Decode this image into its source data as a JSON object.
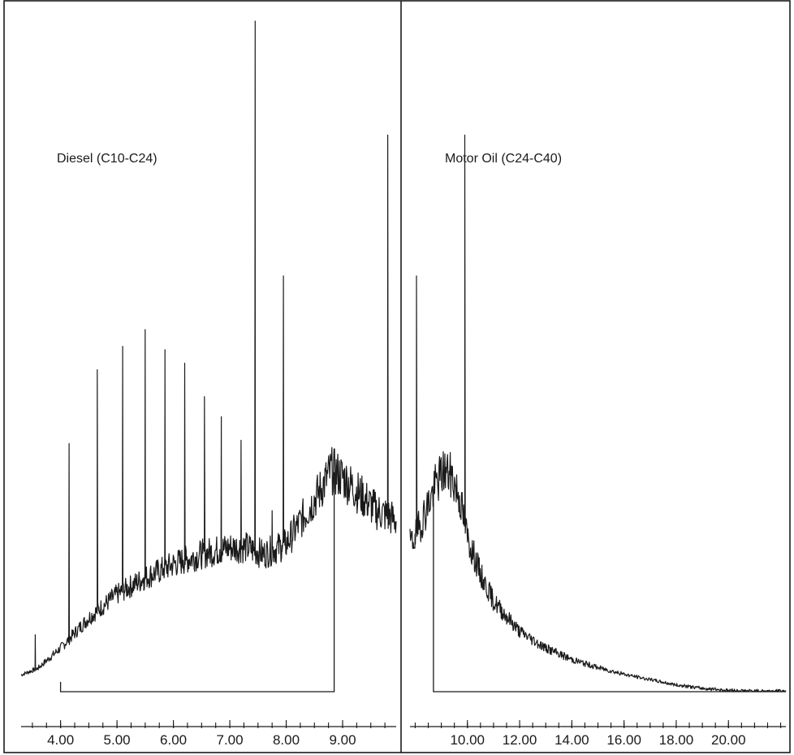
{
  "chart_data": [
    {
      "type": "line",
      "panel": "left",
      "annotation": "Diesel (C10-C24)",
      "title": "",
      "xlabel": "",
      "ylabel": "",
      "xlim": [
        3.3,
        9.95
      ],
      "ylim": [
        0,
        100
      ],
      "xticks": [
        "4.00",
        "5.00",
        "6.00",
        "7.00",
        "8.00",
        "9.00"
      ],
      "xtick_values": [
        4.0,
        5.0,
        6.0,
        7.0,
        8.0,
        9.0
      ],
      "baseline": {
        "start": 4.0,
        "end": 8.85
      },
      "envelope": [
        [
          3.3,
          2.5
        ],
        [
          3.6,
          3.5
        ],
        [
          4.0,
          6.5
        ],
        [
          4.5,
          11
        ],
        [
          5.0,
          14.5
        ],
        [
          5.5,
          17
        ],
        [
          6.0,
          19
        ],
        [
          6.5,
          20.5
        ],
        [
          7.0,
          21.5
        ],
        [
          7.3,
          21.5
        ],
        [
          7.6,
          20.5
        ],
        [
          8.0,
          22
        ],
        [
          8.3,
          26
        ],
        [
          8.6,
          30
        ],
        [
          8.8,
          33
        ],
        [
          9.0,
          32
        ],
        [
          9.3,
          29.5
        ],
        [
          9.6,
          27
        ],
        [
          9.85,
          26
        ],
        [
          9.95,
          25.5
        ]
      ],
      "peaks": [
        {
          "x": 3.55,
          "y": 8.5
        },
        {
          "x": 4.15,
          "y": 37
        },
        {
          "x": 4.65,
          "y": 48
        },
        {
          "x": 5.1,
          "y": 51.5
        },
        {
          "x": 5.5,
          "y": 54
        },
        {
          "x": 5.85,
          "y": 51
        },
        {
          "x": 6.2,
          "y": 49
        },
        {
          "x": 6.55,
          "y": 44
        },
        {
          "x": 6.85,
          "y": 41
        },
        {
          "x": 7.2,
          "y": 37.5
        },
        {
          "x": 7.45,
          "y": 100
        },
        {
          "x": 7.75,
          "y": 27
        },
        {
          "x": 7.95,
          "y": 62
        },
        {
          "x": 9.8,
          "y": 83
        }
      ]
    },
    {
      "type": "line",
      "panel": "right",
      "annotation": "Motor Oil (C24-C40)",
      "title": "",
      "xlabel": "",
      "ylabel": "",
      "xlim": [
        7.8,
        22.2
      ],
      "ylim": [
        0,
        100
      ],
      "xticks": [
        "10.00",
        "12.00",
        "14.00",
        "16.00",
        "18.00",
        "20.00"
      ],
      "xtick_values": [
        10.0,
        12.0,
        14.0,
        16.0,
        18.0,
        20.0
      ],
      "baseline": {
        "start": 8.85,
        "end": 22.2
      },
      "envelope": [
        [
          7.8,
          22
        ],
        [
          8.0,
          23
        ],
        [
          8.2,
          25
        ],
        [
          8.5,
          28
        ],
        [
          8.8,
          31
        ],
        [
          9.1,
          33
        ],
        [
          9.4,
          32
        ],
        [
          9.7,
          29
        ],
        [
          10.0,
          23
        ],
        [
          10.5,
          17.5
        ],
        [
          11.0,
          13.5
        ],
        [
          12.0,
          9
        ],
        [
          13.0,
          6.5
        ],
        [
          14.0,
          4.8
        ],
        [
          15.0,
          3.6
        ],
        [
          16.0,
          2.6
        ],
        [
          17.0,
          1.8
        ],
        [
          18.0,
          1.0
        ],
        [
          19.0,
          0.5
        ],
        [
          20.0,
          0.2
        ],
        [
          21.0,
          0.1
        ],
        [
          22.2,
          0.1
        ]
      ],
      "peaks": [
        {
          "x": 8.05,
          "y": 62
        },
        {
          "x": 9.9,
          "y": 83
        }
      ]
    }
  ]
}
